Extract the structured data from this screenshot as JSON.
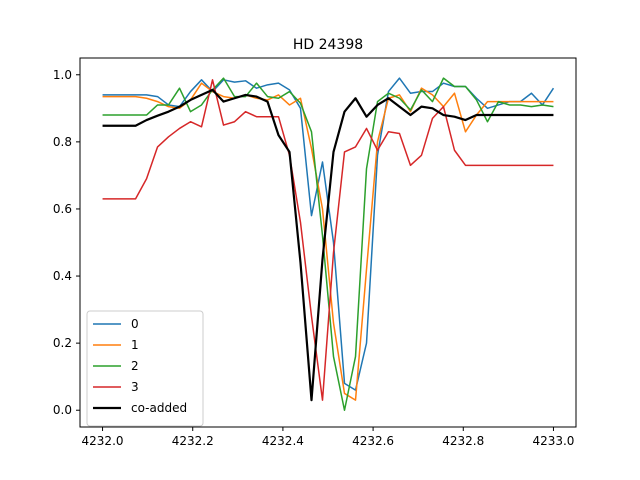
{
  "chart_data": {
    "type": "line",
    "title": "HD 24398",
    "xlabel": "",
    "ylabel": "",
    "xlim": [
      4231.95,
      4233.05
    ],
    "ylim": [
      -0.05,
      1.05
    ],
    "xticks": [
      4232.0,
      4232.2,
      4232.4,
      4232.6,
      4232.8,
      4233.0
    ],
    "xtick_labels": [
      "4232.0",
      "4232.2",
      "4232.4",
      "4232.6",
      "4232.8",
      "4233.0"
    ],
    "yticks": [
      0.0,
      0.2,
      0.4,
      0.6,
      0.8,
      1.0
    ],
    "ytick_labels": [
      "0.0",
      "0.2",
      "0.4",
      "0.6",
      "0.8",
      "1.0"
    ],
    "grid": false,
    "legend_position": "lower-left",
    "x": [
      4232.0,
      4232.0244,
      4232.0488,
      4232.0732,
      4232.0976,
      4232.122,
      4232.1463,
      4232.1707,
      4232.1951,
      4232.2195,
      4232.2439,
      4232.2683,
      4232.2927,
      4232.3171,
      4232.3415,
      4232.3659,
      4232.3902,
      4232.4146,
      4232.439,
      4232.4634,
      4232.4878,
      4232.5122,
      4232.5366,
      4232.561,
      4232.5854,
      4232.6098,
      4232.6341,
      4232.6585,
      4232.6829,
      4232.7073,
      4232.7317,
      4232.7561,
      4232.7805,
      4232.8049,
      4232.8293,
      4232.8537,
      4232.878,
      4232.9024,
      4232.9268,
      4232.9512,
      4232.9756,
      4233.0
    ],
    "series": [
      {
        "name": "0",
        "color": "#1f77b4",
        "values": [
          0.94,
          0.94,
          0.94,
          0.94,
          0.94,
          0.935,
          0.91,
          0.905,
          0.95,
          0.985,
          0.95,
          0.985,
          0.978,
          0.982,
          0.96,
          0.97,
          0.975,
          0.955,
          0.9,
          0.58,
          0.74,
          0.5,
          0.08,
          0.06,
          0.2,
          0.76,
          0.95,
          0.99,
          0.945,
          0.95,
          0.95,
          0.975,
          0.965,
          0.965,
          0.93,
          0.9,
          0.91,
          0.92,
          0.92,
          0.945,
          0.91,
          0.96
        ]
      },
      {
        "name": "1",
        "color": "#ff7f0e",
        "values": [
          0.935,
          0.935,
          0.935,
          0.935,
          0.93,
          0.92,
          0.905,
          0.9,
          0.925,
          0.975,
          0.95,
          0.935,
          0.93,
          0.94,
          0.93,
          0.925,
          0.94,
          0.91,
          0.93,
          0.78,
          0.6,
          0.26,
          0.05,
          0.03,
          0.42,
          0.8,
          0.93,
          0.94,
          0.89,
          0.96,
          0.94,
          0.905,
          0.945,
          0.83,
          0.88,
          0.92,
          0.92,
          0.92,
          0.92,
          0.92,
          0.92,
          0.92
        ]
      },
      {
        "name": "2",
        "color": "#2ca02c",
        "values": [
          0.88,
          0.88,
          0.88,
          0.88,
          0.88,
          0.91,
          0.91,
          0.96,
          0.89,
          0.91,
          0.955,
          0.99,
          0.935,
          0.935,
          0.975,
          0.935,
          0.93,
          0.95,
          0.915,
          0.83,
          0.52,
          0.16,
          0.0,
          0.16,
          0.72,
          0.92,
          0.945,
          0.93,
          0.895,
          0.955,
          0.92,
          0.99,
          0.965,
          0.965,
          0.925,
          0.86,
          0.92,
          0.91,
          0.91,
          0.905,
          0.91,
          0.905
        ]
      },
      {
        "name": "3",
        "color": "#d62728",
        "values": [
          0.63,
          0.63,
          0.63,
          0.63,
          0.69,
          0.785,
          0.815,
          0.84,
          0.86,
          0.845,
          0.985,
          0.85,
          0.86,
          0.89,
          0.875,
          0.875,
          0.875,
          0.76,
          0.56,
          0.28,
          0.03,
          0.47,
          0.77,
          0.785,
          0.84,
          0.775,
          0.83,
          0.825,
          0.73,
          0.76,
          0.87,
          0.905,
          0.775,
          0.73,
          0.73,
          0.73,
          0.73,
          0.73,
          0.73,
          0.73,
          0.73,
          0.73
        ]
      },
      {
        "name": "co-added",
        "color": "#000000",
        "values": [
          0.848,
          0.848,
          0.848,
          0.848,
          0.865,
          0.878,
          0.89,
          0.905,
          0.925,
          0.94,
          0.955,
          0.92,
          0.93,
          0.94,
          0.935,
          0.92,
          0.82,
          0.77,
          0.44,
          0.03,
          0.45,
          0.77,
          0.89,
          0.93,
          0.875,
          0.91,
          0.93,
          0.905,
          0.88,
          0.905,
          0.9,
          0.88,
          0.875,
          0.865,
          0.88,
          0.88,
          0.88,
          0.88,
          0.88,
          0.88,
          0.88,
          0.88
        ]
      }
    ]
  }
}
